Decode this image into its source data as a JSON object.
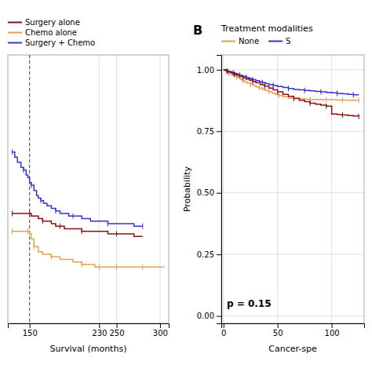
{
  "chart_data": [
    {
      "type": "step",
      "x_label": "Survival (months)",
      "xlim": [
        125,
        310
      ],
      "ylim": [
        0.0,
        1.05
      ],
      "xticks": [
        150,
        230,
        250,
        300
      ],
      "yticks": [],
      "tick_labels": "x",
      "grid": true,
      "legend": "top left",
      "reference_lines": [
        {
          "x": 150,
          "line_style": "dashed"
        }
      ],
      "series": [
        {
          "name": "Surgery alone",
          "color": "#8B1010",
          "x": [
            130,
            140,
            145,
            148,
            150,
            152,
            155,
            160,
            165,
            170,
            175,
            180,
            185,
            190,
            195,
            200,
            210,
            220,
            230,
            240,
            250,
            260,
            270,
            280
          ],
          "values": [
            0.43,
            0.43,
            0.43,
            0.43,
            0.43,
            0.42,
            0.42,
            0.41,
            0.4,
            0.4,
            0.39,
            0.38,
            0.38,
            0.37,
            0.37,
            0.37,
            0.36,
            0.36,
            0.36,
            0.35,
            0.35,
            0.35,
            0.34,
            0.34
          ],
          "censor_x": [
            130,
            150,
            165,
            185,
            210,
            250
          ],
          "censor_values": [
            0.43,
            0.43,
            0.4,
            0.38,
            0.36,
            0.35
          ]
        },
        {
          "name": "Chemo alone",
          "color": "#E8A050",
          "x": [
            130,
            140,
            145,
            148,
            150,
            152,
            155,
            160,
            165,
            175,
            185,
            200,
            210,
            220,
            225,
            230,
            235,
            240,
            250,
            260,
            270,
            280,
            295,
            305
          ],
          "values": [
            0.36,
            0.36,
            0.36,
            0.36,
            0.35,
            0.33,
            0.3,
            0.28,
            0.27,
            0.26,
            0.25,
            0.24,
            0.23,
            0.23,
            0.22,
            0.22,
            0.22,
            0.22,
            0.22,
            0.22,
            0.22,
            0.22,
            0.22,
            0.22
          ],
          "censor_x": [
            130,
            148,
            155,
            175,
            210,
            230,
            250,
            280
          ],
          "censor_values": [
            0.36,
            0.36,
            0.3,
            0.26,
            0.23,
            0.22,
            0.22,
            0.22
          ]
        },
        {
          "name": "Surgery + Chemo",
          "color": "#3535CC",
          "x": [
            130,
            133,
            136,
            140,
            143,
            146,
            148,
            150,
            152,
            155,
            158,
            160,
            163,
            166,
            170,
            175,
            180,
            185,
            190,
            195,
            200,
            210,
            220,
            230,
            240,
            250,
            260,
            270,
            280
          ],
          "values": [
            0.67,
            0.65,
            0.63,
            0.61,
            0.6,
            0.58,
            0.57,
            0.55,
            0.54,
            0.52,
            0.5,
            0.49,
            0.48,
            0.47,
            0.46,
            0.45,
            0.44,
            0.43,
            0.43,
            0.42,
            0.42,
            0.41,
            0.4,
            0.4,
            0.39,
            0.39,
            0.39,
            0.38,
            0.38
          ],
          "censor_x": [
            130,
            143,
            152,
            163,
            180,
            200,
            240,
            280
          ],
          "censor_values": [
            0.67,
            0.6,
            0.54,
            0.48,
            0.44,
            0.42,
            0.39,
            0.38
          ]
        }
      ]
    },
    {
      "type": "step",
      "panel_label": "B",
      "legend_title": "Treatment modalities",
      "x_label": "Cancer-spe",
      "y_label": "Probability",
      "xlim": [
        -2,
        130
      ],
      "ylim": [
        -0.03,
        1.06
      ],
      "xticks": [
        0,
        50,
        100
      ],
      "yticks": [
        {
          "value": 0.0,
          "label": "0.00"
        },
        {
          "value": 0.25,
          "label": "0.25"
        },
        {
          "value": 0.5,
          "label": "0.50"
        },
        {
          "value": 0.75,
          "label": "0.75"
        },
        {
          "value": 1.0,
          "label": "1.00"
        }
      ],
      "grid": true,
      "legend": "top left",
      "annotations": [
        {
          "text": "p = 0.15",
          "x": 3,
          "y": 0.03
        }
      ],
      "series": [
        {
          "name": "None",
          "color": "#E8A050",
          "x": [
            0,
            3,
            5,
            7,
            9,
            12,
            14,
            16,
            18,
            20,
            22,
            25,
            28,
            30,
            33,
            36,
            39,
            42,
            45,
            48,
            51,
            55,
            60,
            65,
            70,
            75,
            80,
            85,
            90,
            95,
            100,
            105,
            110,
            115,
            120,
            125
          ],
          "values": [
            1.0,
            0.99,
            0.985,
            0.98,
            0.975,
            0.97,
            0.965,
            0.96,
            0.955,
            0.95,
            0.945,
            0.94,
            0.935,
            0.93,
            0.925,
            0.92,
            0.915,
            0.91,
            0.905,
            0.9,
            0.895,
            0.89,
            0.885,
            0.882,
            0.882,
            0.88,
            0.879,
            0.879,
            0.878,
            0.878,
            0.878,
            0.877,
            0.877,
            0.876,
            0.876,
            0.876
          ],
          "censor_x": [
            5,
            12,
            18,
            25,
            33,
            42,
            51,
            65,
            80,
            95,
            110,
            125
          ],
          "censor_values": [
            0.985,
            0.97,
            0.955,
            0.94,
            0.925,
            0.91,
            0.895,
            0.882,
            0.879,
            0.878,
            0.877,
            0.876
          ]
        },
        {
          "name": "S",
          "color": "#3535CC",
          "x": [
            0,
            1,
            2,
            3,
            5,
            7,
            9,
            11,
            13,
            15,
            17,
            19,
            21,
            23,
            25,
            27,
            30,
            33,
            36,
            39,
            42,
            46,
            50,
            55,
            60,
            65,
            70,
            75,
            80,
            85,
            90,
            95,
            100,
            105,
            110,
            115,
            120,
            125
          ],
          "values": [
            1.0,
            0.998,
            0.996,
            0.994,
            0.992,
            0.99,
            0.987,
            0.984,
            0.981,
            0.978,
            0.975,
            0.972,
            0.969,
            0.966,
            0.963,
            0.96,
            0.956,
            0.952,
            0.948,
            0.944,
            0.94,
            0.936,
            0.932,
            0.928,
            0.924,
            0.92,
            0.918,
            0.916,
            0.914,
            0.912,
            0.91,
            0.908,
            0.906,
            0.904,
            0.902,
            0.9,
            0.898,
            0.898
          ],
          "censor_x": [
            3,
            9,
            15,
            21,
            27,
            36,
            46,
            60,
            75,
            90,
            105,
            120
          ],
          "censor_values": [
            0.994,
            0.987,
            0.978,
            0.969,
            0.96,
            0.948,
            0.936,
            0.924,
            0.916,
            0.91,
            0.904,
            0.898
          ]
        },
        {
          "color": "#8B1010",
          "x": [
            0,
            2,
            4,
            6,
            8,
            10,
            12,
            15,
            18,
            21,
            24,
            27,
            30,
            34,
            38,
            42,
            46,
            50,
            55,
            60,
            65,
            70,
            75,
            80,
            85,
            90,
            95,
            100,
            105,
            110,
            115,
            120,
            125
          ],
          "values": [
            1.0,
            0.997,
            0.993,
            0.989,
            0.985,
            0.981,
            0.977,
            0.972,
            0.967,
            0.962,
            0.957,
            0.952,
            0.947,
            0.94,
            0.933,
            0.925,
            0.918,
            0.91,
            0.9,
            0.892,
            0.884,
            0.876,
            0.87,
            0.864,
            0.86,
            0.856,
            0.852,
            0.82,
            0.818,
            0.816,
            0.814,
            0.812,
            0.81
          ],
          "censor_x": [
            4,
            10,
            18,
            27,
            38,
            50,
            65,
            80,
            95,
            110,
            125
          ],
          "censor_values": [
            0.993,
            0.981,
            0.967,
            0.952,
            0.933,
            0.91,
            0.884,
            0.864,
            0.852,
            0.816,
            0.81
          ]
        }
      ]
    }
  ]
}
